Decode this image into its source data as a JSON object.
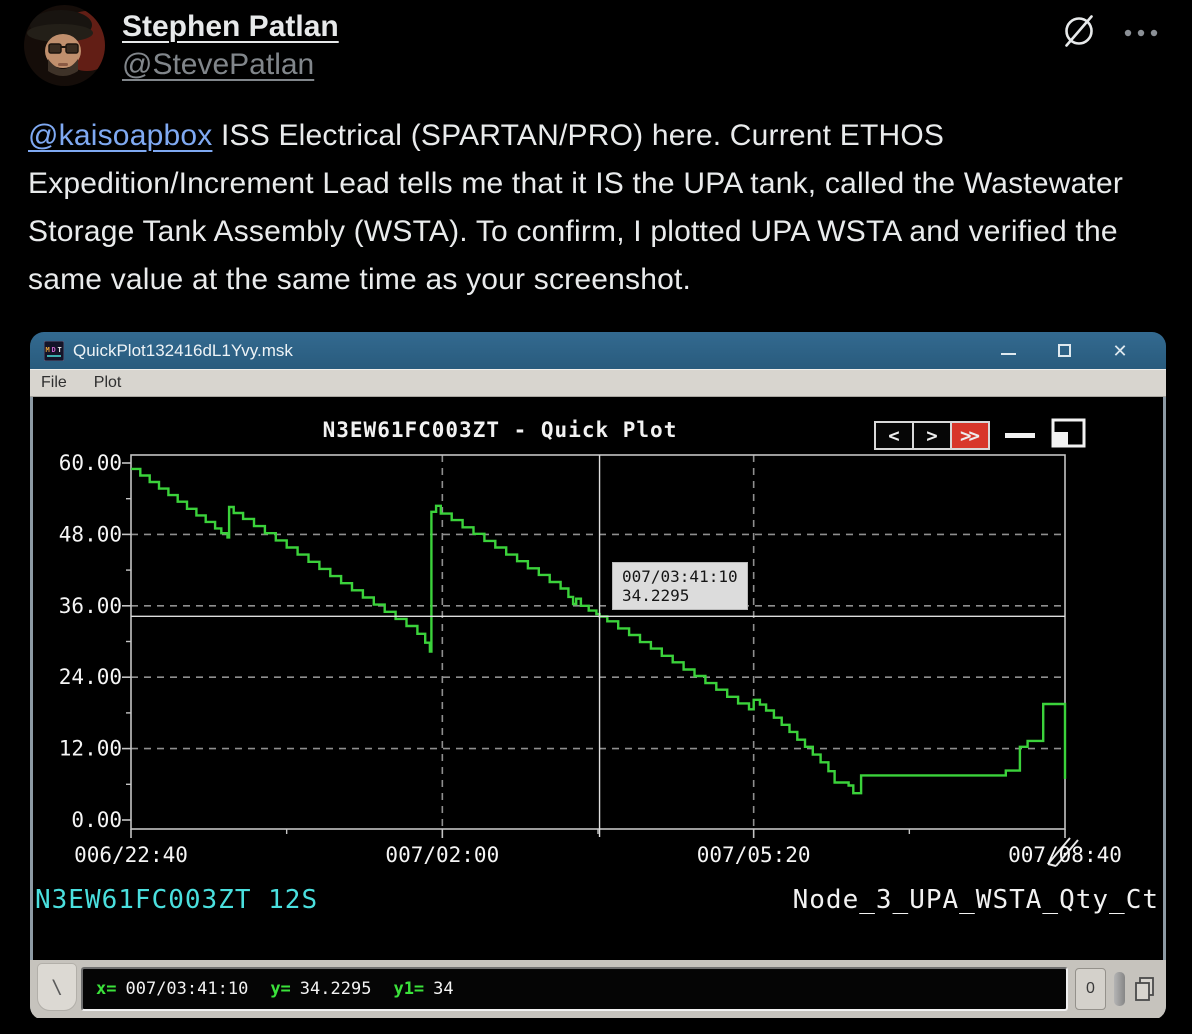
{
  "post": {
    "author": {
      "name": "Stephen Patlan",
      "handle": "@StevePatlan"
    },
    "header_icons": {
      "logo": "planet-slash-logo",
      "more": "ellipsis-menu"
    },
    "body": {
      "mention": "@kaisoapbox",
      "text": " ISS Electrical (SPARTAN/PRO) here. Current ETHOS Expedition/Increment Lead tells me that it IS the UPA tank, called the Wastewater Storage Tank Assembly (WSTA).  To confirm, I plotted UPA WSTA and verified the same value at the same time as your screenshot."
    }
  },
  "window": {
    "title": "QuickPlot132416dL1Yvy.msk",
    "app_icon": "MDT",
    "menus": [
      "File",
      "Plot"
    ],
    "controls": {
      "minimize": "minimize-icon",
      "maximize": "maximize-icon",
      "close": "close-icon"
    }
  },
  "plot": {
    "title": "N3EW61FC003ZT - Quick Plot",
    "nav": {
      "prev": "<",
      "next": ">",
      "fast": ">>"
    },
    "tooltip": {
      "line1": "007/03:41:10",
      "line2": "34.2295"
    },
    "series_label_left": "N3EW61FC003ZT 12S",
    "series_label_right": "Node_3_UPA_WSTA_Qty_Ct",
    "status": {
      "prompt": "\\",
      "items": [
        {
          "label": "x=",
          "value": "007/03:41:10"
        },
        {
          "label": "y=",
          "value": "34.2295"
        },
        {
          "label": "y1=",
          "value": "34"
        }
      ],
      "counter": "0"
    }
  },
  "chart_data": {
    "type": "line",
    "step": true,
    "title": "N3EW61FC003ZT - Quick Plot",
    "series_name": "Node_3_UPA_WSTA_Qty_Ct",
    "x_tick_labels": [
      "006/22:40",
      "007/02:00",
      "007/05:20",
      "007/08:40"
    ],
    "x_tick_minutes": [
      0,
      200,
      400,
      600
    ],
    "xlim_minutes": [
      0,
      600
    ],
    "y_tick_labels": [
      "0.00",
      "12.00",
      "24.00",
      "36.00",
      "48.00",
      "60.00"
    ],
    "y_ticks": [
      0,
      12,
      24,
      36,
      48,
      60
    ],
    "ylim": [
      0,
      60
    ],
    "grid": "dashed",
    "crosshair": {
      "t_minutes": 301,
      "value": 34.2295,
      "time": "007/03:41:10"
    },
    "colors": {
      "line": "#3bd23b",
      "grid": "#8f8f8f",
      "crosshair": "#dedede",
      "frame": "#c4c4c4",
      "bg": "#000000"
    },
    "points": [
      [
        0,
        59.0
      ],
      [
        6,
        57.9
      ],
      [
        12,
        56.8
      ],
      [
        18,
        55.7
      ],
      [
        24,
        54.6
      ],
      [
        30,
        53.5
      ],
      [
        36,
        52.3
      ],
      [
        42,
        51.2
      ],
      [
        48,
        50.1
      ],
      [
        54,
        49.0
      ],
      [
        58,
        48.2
      ],
      [
        62,
        47.5
      ],
      [
        63,
        52.6
      ],
      [
        66,
        51.6
      ],
      [
        72,
        50.6
      ],
      [
        79,
        49.4
      ],
      [
        86,
        48.2
      ],
      [
        93,
        47.0
      ],
      [
        100,
        45.8
      ],
      [
        107,
        44.6
      ],
      [
        114,
        43.4
      ],
      [
        121,
        42.2
      ],
      [
        128,
        41.0
      ],
      [
        135,
        39.8
      ],
      [
        142,
        38.6
      ],
      [
        149,
        37.4
      ],
      [
        156,
        36.2
      ],
      [
        163,
        35.0
      ],
      [
        170,
        33.8
      ],
      [
        177,
        32.6
      ],
      [
        184,
        31.3
      ],
      [
        189,
        29.8
      ],
      [
        192,
        28.3
      ],
      [
        193,
        51.8
      ],
      [
        196,
        52.8
      ],
      [
        199,
        51.5
      ],
      [
        206,
        50.4
      ],
      [
        213,
        49.2
      ],
      [
        220,
        48.1
      ],
      [
        227,
        46.9
      ],
      [
        234,
        45.8
      ],
      [
        241,
        44.6
      ],
      [
        248,
        43.5
      ],
      [
        255,
        42.3
      ],
      [
        262,
        41.2
      ],
      [
        269,
        40.0
      ],
      [
        276,
        38.9
      ],
      [
        281,
        37.5
      ],
      [
        284,
        36.3
      ],
      [
        286,
        37.2
      ],
      [
        289,
        36.0
      ],
      [
        294,
        35.2
      ],
      [
        299,
        34.6
      ],
      [
        301,
        34.2
      ],
      [
        306,
        33.4
      ],
      [
        313,
        32.2
      ],
      [
        320,
        31.1
      ],
      [
        327,
        29.9
      ],
      [
        334,
        28.8
      ],
      [
        341,
        27.6
      ],
      [
        348,
        26.5
      ],
      [
        355,
        25.3
      ],
      [
        362,
        24.2
      ],
      [
        369,
        23.0
      ],
      [
        376,
        21.9
      ],
      [
        383,
        20.7
      ],
      [
        390,
        19.6
      ],
      [
        397,
        18.6
      ],
      [
        400,
        20.2
      ],
      [
        404,
        19.4
      ],
      [
        408,
        18.4
      ],
      [
        413,
        17.2
      ],
      [
        418,
        16.0
      ],
      [
        423,
        14.8
      ],
      [
        428,
        13.5
      ],
      [
        433,
        12.3
      ],
      [
        438,
        11.0
      ],
      [
        443,
        9.7
      ],
      [
        448,
        8.2
      ],
      [
        452,
        6.3
      ],
      [
        461,
        5.8
      ],
      [
        464,
        4.5
      ],
      [
        468,
        4.5
      ],
      [
        469,
        7.5
      ],
      [
        560,
        7.5
      ],
      [
        562,
        8.3
      ],
      [
        569,
        8.3
      ],
      [
        571,
        12.3
      ],
      [
        576,
        13.3
      ],
      [
        585,
        13.3
      ],
      [
        586,
        19.5
      ],
      [
        599,
        19.5
      ],
      [
        600,
        6.9
      ]
    ]
  }
}
